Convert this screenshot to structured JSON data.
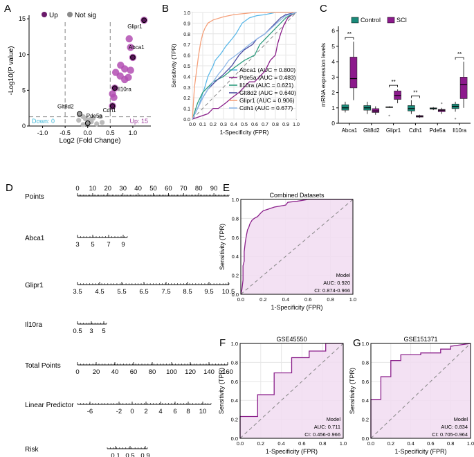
{
  "panels": {
    "A": "A",
    "B": "B",
    "C": "C",
    "D": "D",
    "E": "E",
    "F": "F",
    "G": "G"
  },
  "chart_data": [
    {
      "panel": "A",
      "type": "scatter",
      "title": "",
      "xlabel": "Log2 (Fold Change)",
      "ylabel": "-Log10(P value)",
      "xlim": [
        -1.3,
        1.4
      ],
      "ylim": [
        0,
        15.5
      ],
      "xticks": [
        -1.0,
        -0.5,
        0.0,
        0.5,
        1.0
      ],
      "yticks": [
        0,
        5,
        10,
        15
      ],
      "legend": {
        "up": "Up",
        "notsig": "Not sig"
      },
      "down_label": "Down: 0",
      "up_label": "Up: 15",
      "up_points": [
        [
          1.25,
          14.8
        ],
        [
          0.92,
          12.2
        ],
        [
          0.95,
          11.0
        ],
        [
          1.0,
          9.6
        ],
        [
          0.73,
          8.5
        ],
        [
          0.82,
          8.0
        ],
        [
          0.95,
          7.8
        ],
        [
          0.62,
          7.5
        ],
        [
          0.72,
          7.0
        ],
        [
          0.9,
          6.8
        ],
        [
          0.82,
          6.5
        ],
        [
          0.6,
          5.3
        ],
        [
          0.55,
          4.5
        ],
        [
          0.58,
          4.0
        ],
        [
          0.55,
          2.8
        ]
      ],
      "notsig_points": [
        [
          -0.18,
          1.7
        ],
        [
          -0.1,
          1.3
        ],
        [
          -0.05,
          1.0
        ],
        [
          0.05,
          0.9
        ],
        [
          0.12,
          1.1
        ],
        [
          -0.2,
          0.8
        ],
        [
          0.0,
          0.4
        ],
        [
          0.08,
          0.6
        ],
        [
          0.2,
          0.3
        ],
        [
          0.32,
          0.5
        ],
        [
          -0.1,
          0.2
        ],
        [
          0.28,
          1.3
        ]
      ],
      "labels": [
        {
          "gene": "Glipr1",
          "x": 1.25,
          "y": 14.8
        },
        {
          "gene": "Abca1",
          "x": 1.0,
          "y": 9.6
        },
        {
          "gene": "Il10ra",
          "x": 0.6,
          "y": 5.3
        },
        {
          "gene": "Cdh1",
          "x": 0.55,
          "y": 2.8
        },
        {
          "gene": "Glt8d2",
          "x": -0.18,
          "y": 1.7
        },
        {
          "gene": "Pde5a",
          "x": 0.0,
          "y": 0.4
        }
      ]
    },
    {
      "panel": "B",
      "type": "line",
      "title": "",
      "xlabel": "1-Specificity (FPR)",
      "ylabel": "Sensitivity (TPR)",
      "xlim": [
        0,
        1
      ],
      "ylim": [
        0,
        1
      ],
      "ticks": [
        "0.0",
        "0.1",
        "0.2",
        "0.3",
        "0.4",
        "0.5",
        "0.6",
        "0.7",
        "0.8",
        "0.9",
        "1.0"
      ],
      "series": [
        {
          "name": "Abca1 (AUC = 0.800)",
          "color": "#5bb8e8",
          "x": [
            0,
            0.05,
            0.08,
            0.12,
            0.15,
            0.2,
            0.22,
            0.28,
            0.32,
            0.38,
            0.42,
            0.45,
            0.48,
            0.55,
            0.62,
            0.7,
            0.8,
            0.9,
            1
          ],
          "y": [
            0,
            0.1,
            0.18,
            0.3,
            0.4,
            0.5,
            0.55,
            0.62,
            0.68,
            0.75,
            0.8,
            0.85,
            0.9,
            0.95,
            0.97,
            0.98,
            1,
            1,
            1
          ]
        },
        {
          "name": "Pde5a (AUC = 0.483)",
          "color": "#8a1f8a",
          "x": [
            0,
            0.15,
            0.2,
            0.25,
            0.32,
            0.38,
            0.45,
            0.5,
            0.55,
            0.6,
            0.65,
            0.7,
            0.75,
            0.8,
            0.82,
            0.85,
            0.88,
            0.92,
            0.96,
            1
          ],
          "y": [
            0,
            0.05,
            0.1,
            0.1,
            0.15,
            0.2,
            0.25,
            0.3,
            0.35,
            0.35,
            0.4,
            0.45,
            0.55,
            0.6,
            0.7,
            0.8,
            0.88,
            0.95,
            0.98,
            1
          ]
        },
        {
          "name": "Il10ra (AUC = 0.621)",
          "color": "#2e9d7f",
          "x": [
            0,
            0.05,
            0.1,
            0.15,
            0.2,
            0.3,
            0.4,
            0.5,
            0.6,
            0.65,
            0.7,
            0.75,
            0.8,
            0.85,
            0.9,
            0.95,
            1
          ],
          "y": [
            0,
            0.15,
            0.25,
            0.3,
            0.35,
            0.4,
            0.48,
            0.55,
            0.6,
            0.7,
            0.75,
            0.8,
            0.85,
            0.9,
            0.95,
            0.98,
            1
          ]
        },
        {
          "name": "Glt8d2 (AUC = 0.640)",
          "color": "#4a4aa0",
          "x": [
            0,
            0.05,
            0.1,
            0.15,
            0.22,
            0.3,
            0.38,
            0.45,
            0.5,
            0.58,
            0.62,
            0.7,
            0.78,
            0.85,
            0.9,
            1
          ],
          "y": [
            0,
            0.1,
            0.2,
            0.28,
            0.35,
            0.42,
            0.5,
            0.6,
            0.65,
            0.7,
            0.75,
            0.8,
            0.88,
            0.95,
            0.98,
            1
          ]
        },
        {
          "name": "Glipr1 (AUC = 0.906)",
          "color": "#f5a07a",
          "x": [
            0,
            0.02,
            0.04,
            0.06,
            0.08,
            0.1,
            0.12,
            0.15,
            0.2,
            0.3,
            0.4,
            0.6,
            0.8,
            1
          ],
          "y": [
            0,
            0.3,
            0.45,
            0.6,
            0.72,
            0.8,
            0.85,
            0.9,
            0.93,
            0.96,
            0.98,
            1,
            1,
            1
          ]
        },
        {
          "name": "Cdh1 (AUC = 0.677)",
          "color": "#8fb8e8",
          "x": [
            0,
            0.05,
            0.1,
            0.15,
            0.2,
            0.25,
            0.3,
            0.35,
            0.42,
            0.5,
            0.55,
            0.62,
            0.7,
            0.78,
            0.85,
            0.9,
            1
          ],
          "y": [
            0,
            0.1,
            0.2,
            0.28,
            0.35,
            0.42,
            0.48,
            0.55,
            0.6,
            0.66,
            0.7,
            0.75,
            0.8,
            0.87,
            0.93,
            0.97,
            1
          ]
        }
      ]
    },
    {
      "panel": "C",
      "type": "box",
      "ylabel": "mRNA expression levels",
      "ylim": [
        0,
        6.3
      ],
      "yticks": [
        0,
        1,
        2,
        3,
        4,
        5,
        6
      ],
      "legend": {
        "control": "Control",
        "sci": "SCI"
      },
      "colors": {
        "control": "#1a8a7a",
        "sci": "#8c1a8c"
      },
      "categories": [
        "Abca1",
        "Glt8d2",
        "Glipr1",
        "Cdh1",
        "Pde5a",
        "Il10ra"
      ],
      "significance": [
        "**",
        "",
        "**",
        "**",
        "",
        "**"
      ],
      "control": [
        [
          0.7,
          0.85,
          1.0,
          1.2,
          1.4
        ],
        [
          0.6,
          0.85,
          1.0,
          1.15,
          1.4
        ],
        [
          1.0,
          1.02,
          1.05,
          1.07,
          1.1
        ],
        [
          0.6,
          0.8,
          0.95,
          1.15,
          1.5
        ],
        [
          0.85,
          0.92,
          0.95,
          1.0,
          1.05
        ],
        [
          0.75,
          0.95,
          1.1,
          1.25,
          1.4
        ]
      ],
      "sci": [
        [
          1.5,
          2.3,
          2.9,
          4.3,
          5.3
        ],
        [
          0.55,
          0.7,
          0.8,
          0.95,
          1.1
        ],
        [
          1.3,
          1.55,
          1.8,
          2.1,
          2.2
        ],
        [
          0.35,
          0.4,
          0.45,
          0.5,
          0.55
        ],
        [
          0.6,
          0.75,
          0.85,
          0.9,
          1.0
        ],
        [
          1.0,
          1.6,
          2.5,
          3.0,
          4.0
        ]
      ],
      "outliers": [
        {
          "cat": "Glipr1",
          "group": "control",
          "y": 0.5
        },
        {
          "cat": "Il10ra",
          "group": "control",
          "y": 0.3
        },
        {
          "cat": "Pde5a",
          "group": "sci",
          "y": 1.3
        }
      ]
    },
    {
      "panel": "D",
      "type": "nomogram",
      "rows": [
        {
          "label": "Points",
          "ticks": [
            "0",
            "10",
            "20",
            "30",
            "40",
            "50",
            "60",
            "70",
            "80",
            "90"
          ]
        },
        {
          "label": "Abca1",
          "ticks": [
            "3",
            "5",
            "7",
            "9"
          ]
        },
        {
          "label": "Glipr1",
          "ticks": [
            "3.5",
            "4.5",
            "5.5",
            "6.5",
            "7.5",
            "8.5",
            "9.5",
            "10.5"
          ]
        },
        {
          "label": "Il10ra",
          "ticks": [
            "0.5",
            "3",
            "5"
          ]
        },
        {
          "label": "Total Points",
          "ticks": [
            "0",
            "20",
            "40",
            "60",
            "80",
            "100",
            "120",
            "140",
            "160"
          ]
        },
        {
          "label": "Linear Predictor",
          "ticks": [
            "-6",
            "-2",
            "0",
            "2",
            "4",
            "6",
            "8",
            "10"
          ]
        },
        {
          "label": "Risk",
          "ticks": [
            "0.1",
            "0.5",
            "0.9"
          ]
        }
      ]
    },
    {
      "panel": "E",
      "type": "line",
      "title": "Combined Datasets",
      "xlabel": "1-Specificity (FPR)",
      "ylabel": "Sensitivity (TPR)",
      "ticks": [
        "0.0",
        "0.2",
        "0.4",
        "0.6",
        "0.8",
        "1.0"
      ],
      "model": "Model",
      "auc": "AUC: 0.920",
      "ci": "CI: 0.874-0.966",
      "x": [
        0,
        0.01,
        0.02,
        0.02,
        0.03,
        0.03,
        0.04,
        0.05,
        0.06,
        0.07,
        0.08,
        0.1,
        0.12,
        0.15,
        0.18,
        0.2,
        0.25,
        0.3,
        0.35,
        0.4,
        0.42,
        0.5,
        0.6,
        0.7,
        0.8,
        1
      ],
      "y": [
        0,
        0.05,
        0.15,
        0.3,
        0.35,
        0.45,
        0.55,
        0.62,
        0.68,
        0.7,
        0.74,
        0.78,
        0.8,
        0.82,
        0.86,
        0.88,
        0.9,
        0.92,
        0.93,
        0.94,
        0.97,
        0.98,
        1,
        1,
        1,
        1
      ]
    },
    {
      "panel": "F",
      "type": "line",
      "title": "GSE45550",
      "xlabel": "1-Specificity (FPR)",
      "ylabel": "Sensitivity (TPR)",
      "ticks": [
        "0.0",
        "0.2",
        "0.4",
        "0.6",
        "0.8",
        "1.0"
      ],
      "model": "Model",
      "auc": "AUC: 0.711",
      "ci": "CI: 0.456-0.966",
      "x": [
        0,
        0,
        0.17,
        0.17,
        0.33,
        0.33,
        0.5,
        0.5,
        0.67,
        0.67,
        0.83,
        0.83,
        1
      ],
      "y": [
        0,
        0.23,
        0.23,
        0.46,
        0.46,
        0.69,
        0.69,
        0.85,
        0.85,
        0.92,
        0.92,
        1,
        1
      ]
    },
    {
      "panel": "G",
      "type": "line",
      "title": "GSE151371",
      "xlabel": "1-Specificity (FPR)",
      "ylabel": "Sensitivity (TPR)",
      "ticks": [
        "0.0",
        "0.2",
        "0.4",
        "0.6",
        "0.8",
        "1.0"
      ],
      "model": "Model",
      "auc": "AUC: 0.834",
      "ci": "CI: 0.705-0.964",
      "x": [
        0,
        0,
        0.1,
        0.1,
        0.2,
        0.2,
        0.3,
        0.3,
        0.5,
        0.5,
        0.7,
        0.7,
        0.8,
        0.8,
        1
      ],
      "y": [
        0,
        0.41,
        0.41,
        0.65,
        0.65,
        0.82,
        0.82,
        0.88,
        0.88,
        0.9,
        0.9,
        0.94,
        0.94,
        0.97,
        1
      ]
    }
  ]
}
